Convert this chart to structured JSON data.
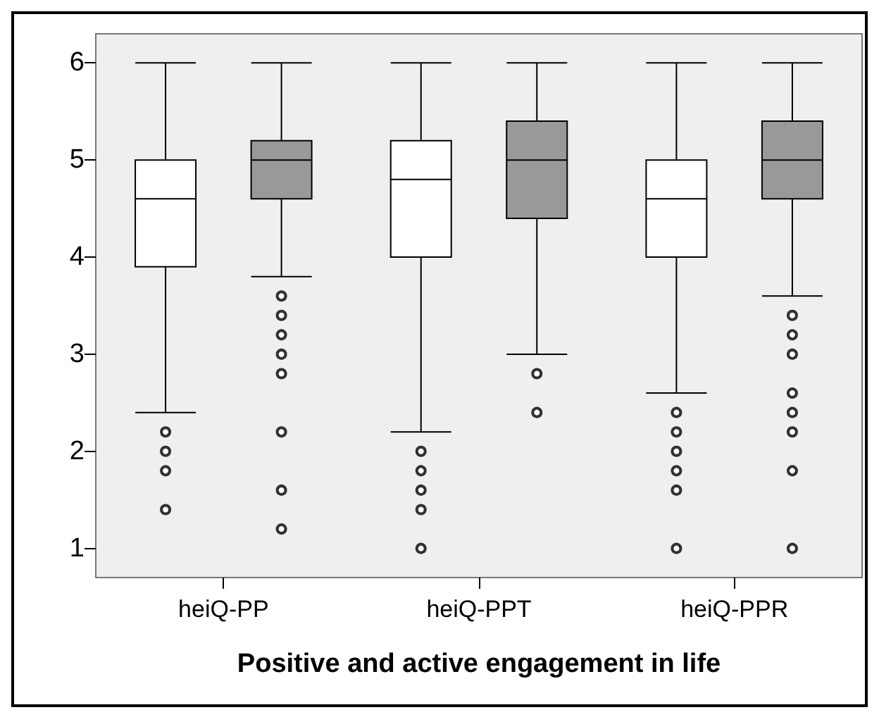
{
  "chart_data": {
    "type": "box",
    "xlabel": "Positive and active engagement in life",
    "categories": [
      "heiQ-PP",
      "heiQ-PPT",
      "heiQ-PPR"
    ],
    "ylim": [
      0.7,
      6.3
    ],
    "yticks": [
      1,
      2,
      3,
      4,
      5,
      6
    ],
    "grid": false,
    "marker": "circle",
    "series": [
      {
        "color": "#ffffff",
        "boxes": [
          {
            "low": 2.4,
            "q1": 3.9,
            "median": 4.6,
            "q3": 5,
            "high": 6,
            "outliers": [
              2.2,
              2.0,
              1.8,
              1.4
            ]
          },
          {
            "low": 2.2,
            "q1": 4,
            "median": 4.8,
            "q3": 5.2,
            "high": 6,
            "outliers": [
              2.0,
              1.8,
              1.6,
              1.4,
              1.0
            ]
          },
          {
            "low": 2.6,
            "q1": 4,
            "median": 4.6,
            "q3": 5,
            "high": 6,
            "outliers": [
              2.4,
              2.2,
              2.0,
              1.8,
              1.6,
              1.0
            ]
          }
        ]
      },
      {
        "color": "#999999",
        "boxes": [
          {
            "low": 3.8,
            "q1": 4.6,
            "median": 5,
            "q3": 5.2,
            "high": 6,
            "outliers": [
              3.6,
              3.4,
              3.2,
              3.0,
              2.8,
              2.2,
              1.6,
              1.2
            ]
          },
          {
            "low": 3.0,
            "q1": 4.4,
            "median": 5,
            "q3": 5.4,
            "high": 6,
            "outliers": [
              2.8,
              2.4
            ]
          },
          {
            "low": 3.6,
            "q1": 4.6,
            "median": 5,
            "q3": 5.4,
            "high": 6,
            "outliers": [
              3.4,
              3.2,
              3.0,
              2.6,
              2.4,
              2.2,
              1.8,
              1.0
            ]
          }
        ]
      }
    ]
  }
}
